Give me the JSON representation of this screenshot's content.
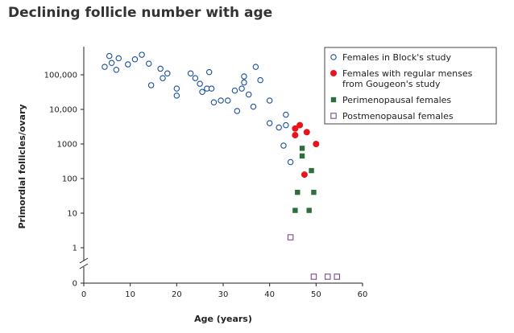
{
  "title": "Declining follicle number with age",
  "chart_data": {
    "type": "scatter",
    "title": "Declining follicle number with age",
    "xlabel": "Age (years)",
    "ylabel": "Primordial follicles/ovary",
    "xlim": [
      0,
      60
    ],
    "x_ticks": [
      0,
      10,
      20,
      30,
      40,
      50,
      60
    ],
    "y_scale": "log",
    "y_axis_break": true,
    "y_ticks": [
      {
        "value": 0,
        "label": "0"
      },
      {
        "value": 1,
        "label": "1"
      },
      {
        "value": 10,
        "label": "10"
      },
      {
        "value": 100,
        "label": "100"
      },
      {
        "value": 1000,
        "label": "1000"
      },
      {
        "value": 10000,
        "label": "10,000"
      },
      {
        "value": 100000,
        "label": "100,000"
      }
    ],
    "legend_position": "top-right",
    "series": [
      {
        "name": "Females in Block's study",
        "marker": "open-circle",
        "color": "#1a4f9c",
        "points": [
          [
            4.5,
            170000
          ],
          [
            5.5,
            350000
          ],
          [
            6,
            220000
          ],
          [
            7,
            140000
          ],
          [
            7.5,
            300000
          ],
          [
            9.5,
            200000
          ],
          [
            11,
            280000
          ],
          [
            12.5,
            380000
          ],
          [
            14,
            210000
          ],
          [
            14.5,
            50000
          ],
          [
            16.5,
            150000
          ],
          [
            17,
            80000
          ],
          [
            18,
            110000
          ],
          [
            20,
            40000
          ],
          [
            20,
            25000
          ],
          [
            23,
            110000
          ],
          [
            24,
            80000
          ],
          [
            25,
            55000
          ],
          [
            25.5,
            32000
          ],
          [
            26.5,
            40000
          ],
          [
            27,
            120000
          ],
          [
            27.5,
            40000
          ],
          [
            28,
            16000
          ],
          [
            29.5,
            18000
          ],
          [
            31,
            18000
          ],
          [
            32.5,
            35000
          ],
          [
            33,
            9000
          ],
          [
            34,
            40000
          ],
          [
            34.5,
            60000
          ],
          [
            34.5,
            90000
          ],
          [
            35.5,
            27000
          ],
          [
            36.5,
            12000
          ],
          [
            37,
            170000
          ],
          [
            38,
            70000
          ],
          [
            40,
            18000
          ],
          [
            40,
            4000
          ],
          [
            42,
            3000
          ],
          [
            43,
            900
          ],
          [
            43.5,
            3500
          ],
          [
            43.5,
            7000
          ],
          [
            44.5,
            300
          ]
        ]
      },
      {
        "name": "Females with regular menses from Gougeon's study",
        "marker": "filled-circle",
        "color": "#e8141c",
        "points": [
          [
            45.5,
            2800
          ],
          [
            45.5,
            1800
          ],
          [
            46.5,
            3500
          ],
          [
            47.5,
            130
          ],
          [
            48,
            2200
          ],
          [
            50,
            1000
          ]
        ]
      },
      {
        "name": "Perimenopausal females",
        "marker": "filled-square",
        "color": "#2e6e3c",
        "points": [
          [
            46,
            40
          ],
          [
            45.5,
            12
          ],
          [
            47,
            750
          ],
          [
            47,
            450
          ],
          [
            49,
            170
          ],
          [
            49.5,
            40
          ],
          [
            48.5,
            12
          ]
        ]
      },
      {
        "name": "Postmenopausal females",
        "marker": "open-square",
        "color": "#7a4a8c",
        "points": [
          [
            44.5,
            2
          ],
          [
            49.5,
            0
          ],
          [
            52.5,
            0
          ],
          [
            54.5,
            0
          ]
        ]
      }
    ]
  }
}
